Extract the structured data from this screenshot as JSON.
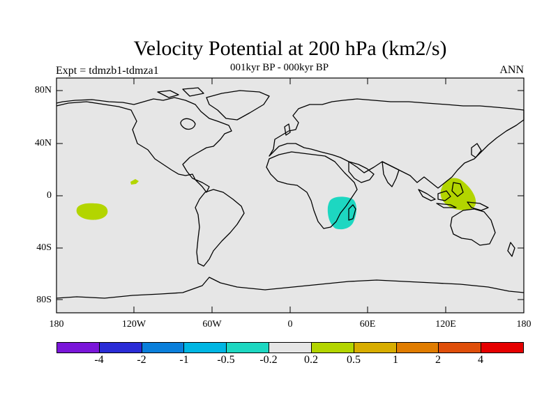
{
  "title": "Velocity Potential at 200 hPa (km2/s)",
  "subtitle": "001kyr BP - 000kyr BP",
  "left_label": "Expt = tdmzb1-tdmza1",
  "right_label": "ANN",
  "map": {
    "background_color": "#e6e6e6",
    "lat_ticks": [
      "80N",
      "40N",
      "0",
      "40S",
      "80S"
    ],
    "lon_ticks": [
      "180",
      "120W",
      "60W",
      "0",
      "60E",
      "120E",
      "180"
    ],
    "anomaly_regions": [
      {
        "region": "central-pacific-south",
        "color": "#b3d500"
      },
      {
        "region": "central-pacific-north",
        "color": "#b3d500"
      },
      {
        "region": "east-africa",
        "color": "#1dd7c1"
      },
      {
        "region": "maritime-continent",
        "color": "#b3d500"
      }
    ]
  },
  "colorbar": {
    "colors": [
      "#7a16d9",
      "#2a2cd6",
      "#0a7fdb",
      "#00b6e3",
      "#1dd7c1",
      "#e6e6e6",
      "#b3d500",
      "#d8ad00",
      "#e07c00",
      "#df4e0a",
      "#e50000"
    ],
    "labels": [
      "-4",
      "-2",
      "-1",
      "-0.5",
      "-0.2",
      "0.2",
      "0.5",
      "1",
      "2",
      "4"
    ]
  }
}
